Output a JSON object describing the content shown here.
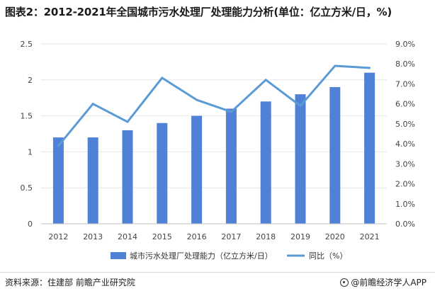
{
  "title": "图表2：2012-2021年全国城市污水处理厂处理能力分析(单位：亿立方米/日，%)",
  "source": "资料来源：住建部 前瞻产业研究院",
  "brand": "@前瞻经济学人APP",
  "chart_data": {
    "type": "bar",
    "categories": [
      "2012",
      "2013",
      "2014",
      "2015",
      "2016",
      "2017",
      "2018",
      "2019",
      "2020",
      "2021"
    ],
    "series": [
      {
        "name": "城市污水处理厂处理能力（亿立方米/日）",
        "type": "bar",
        "axis": "left",
        "color": "#4f81d6",
        "values": [
          1.2,
          1.2,
          1.3,
          1.4,
          1.5,
          1.6,
          1.7,
          1.8,
          1.9,
          2.1
        ]
      },
      {
        "name": "同比（%）",
        "type": "line",
        "axis": "right",
        "color": "#5b9bd5",
        "values": [
          3.9,
          6.0,
          5.1,
          7.3,
          6.2,
          5.6,
          7.2,
          5.9,
          7.9,
          7.8
        ]
      }
    ],
    "y_left": {
      "ylim": [
        0,
        2.5
      ],
      "ticks": [
        "0",
        "0.5",
        "1",
        "1.5",
        "2",
        "2.5"
      ]
    },
    "y_right": {
      "ylim": [
        0,
        9.0
      ],
      "ticks": [
        "0.0%",
        "1.0%",
        "2.0%",
        "3.0%",
        "4.0%",
        "5.0%",
        "6.0%",
        "7.0%",
        "8.0%",
        "9.0%"
      ]
    },
    "grid": true,
    "legend_position": "bottom"
  }
}
